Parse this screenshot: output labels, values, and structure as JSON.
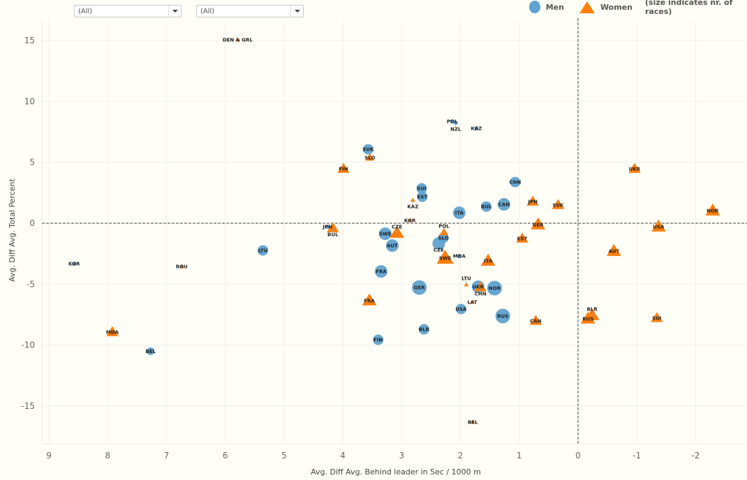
{
  "filters": [
    {
      "value": "(All)"
    },
    {
      "value": "(All)"
    }
  ],
  "legend": {
    "men": "Men",
    "women": "Women",
    "note": "(size indicates nr. of races)"
  },
  "colors": {
    "men": "#5fa2cf",
    "women": "#ff7f0e"
  },
  "chart_data": {
    "type": "scatter",
    "xlabel": "Avg. Diff Avg. Behind leader in Sec / 1000 m",
    "ylabel": "Avg. Diff Avg. Total Percent",
    "xlim": [
      9.1,
      -2.85
    ],
    "ylim": [
      -18,
      16.5
    ],
    "x_reversed": true,
    "xticks": [
      "9",
      "8",
      "7",
      "6",
      "5",
      "4",
      "3",
      "2",
      "1",
      "0",
      "-1",
      "-2"
    ],
    "yticks": [
      "15",
      "10",
      "5",
      "0",
      "-5",
      "-10",
      "-15"
    ],
    "reference_lines": {
      "x": 0,
      "y": 0
    },
    "series": [
      {
        "name": "Men",
        "marker": "circle",
        "points": [
          {
            "label": "KOR",
            "x": 8.57,
            "y": -3.32,
            "size": 1
          },
          {
            "label": "LTU",
            "x": 5.36,
            "y": -2.23,
            "size": 3
          },
          {
            "label": "BEL",
            "x": 7.27,
            "y": -10.5,
            "size": 2
          },
          {
            "label": "JPN",
            "x": 4.26,
            "y": -0.29,
            "size": 1
          },
          {
            "label": "SVK",
            "x": 3.57,
            "y": 6.07,
            "size": 3
          },
          {
            "label": "SUI",
            "x": 2.66,
            "y": 2.86,
            "size": 3
          },
          {
            "label": "EST",
            "x": 2.65,
            "y": 2.18,
            "size": 3
          },
          {
            "label": "POL",
            "x": 2.14,
            "y": 8.36,
            "size": 1
          },
          {
            "label": "NZL",
            "x": 2.08,
            "y": 8.24,
            "size": 1
          },
          {
            "label": "KAZ",
            "x": 1.73,
            "y": 7.78,
            "size": 1
          },
          {
            "label": "CHN",
            "x": 1.07,
            "y": 3.38,
            "size": 3
          },
          {
            "label": "CAN",
            "x": 1.26,
            "y": 1.55,
            "size": 4
          },
          {
            "label": "BUL",
            "x": 1.56,
            "y": 1.37,
            "size": 3
          },
          {
            "label": "ITA",
            "x": 2.02,
            "y": 0.86,
            "size": 4
          },
          {
            "label": "SWE",
            "x": 3.28,
            "y": -0.86,
            "size": 4
          },
          {
            "label": "AUT",
            "x": 3.16,
            "y": -1.83,
            "size": 4
          },
          {
            "label": "SLO",
            "x": 2.29,
            "y": -1.2,
            "size": 3
          },
          {
            "label": "CZE",
            "x": 2.37,
            "y": -1.66,
            "size": 4
          },
          {
            "label": "MDA",
            "x": 2.02,
            "y": -2.69,
            "size": 1
          },
          {
            "label": "FRA",
            "x": 3.35,
            "y": -3.95,
            "size": 4
          },
          {
            "label": "GER",
            "x": 2.7,
            "y": -5.27,
            "size": 5
          },
          {
            "label": "UKR",
            "x": 1.7,
            "y": -5.21,
            "size": 4
          },
          {
            "label": "NOR",
            "x": 1.42,
            "y": -5.32,
            "size": 5
          },
          {
            "label": "USA",
            "x": 1.99,
            "y": -7.04,
            "size": 3
          },
          {
            "label": "RUS",
            "x": 1.28,
            "y": -7.61,
            "size": 5
          },
          {
            "label": "BLR",
            "x": 2.62,
            "y": -8.7,
            "size": 3
          },
          {
            "label": "FIN",
            "x": 3.4,
            "y": -9.56,
            "size": 3
          }
        ]
      },
      {
        "name": "Women",
        "marker": "triangle",
        "points": [
          {
            "label": "DEN & GRL",
            "x": 5.79,
            "y": 15.05,
            "size": 1
          },
          {
            "label": "FIN",
            "x": 3.99,
            "y": 4.46,
            "size": 3
          },
          {
            "label": "SLO",
            "x": 3.54,
            "y": 5.38,
            "size": 2
          },
          {
            "label": "KAZ",
            "x": 2.81,
            "y": 1.89,
            "size": 1
          },
          {
            "label": "KOR",
            "x": 2.86,
            "y": 0.23,
            "size": 1
          },
          {
            "label": "BUL",
            "x": 4.17,
            "y": -0.4,
            "size": 3
          },
          {
            "label": "CZE",
            "x": 3.08,
            "y": -0.8,
            "size": 4
          },
          {
            "label": "POL",
            "x": 2.28,
            "y": -0.74,
            "size": 2
          },
          {
            "label": "SWE",
            "x": 2.26,
            "y": -2.86,
            "size": 5
          },
          {
            "label": "ITA",
            "x": 1.53,
            "y": -3.09,
            "size": 4
          },
          {
            "label": "JPN",
            "x": 0.77,
            "y": 1.77,
            "size": 3
          },
          {
            "label": "SVK",
            "x": 0.34,
            "y": 1.49,
            "size": 3
          },
          {
            "label": "GER",
            "x": 0.68,
            "y": -0.11,
            "size": 4
          },
          {
            "label": "EST",
            "x": 0.95,
            "y": -1.26,
            "size": 3
          },
          {
            "label": "ROU",
            "x": 6.74,
            "y": -3.55,
            "size": 1
          },
          {
            "label": "MDA",
            "x": 7.92,
            "y": -8.93,
            "size": 3
          },
          {
            "label": "FRA",
            "x": 3.55,
            "y": -6.35,
            "size": 4
          },
          {
            "label": "LTU",
            "x": 1.9,
            "y": -5.04,
            "size": 1
          },
          {
            "label": "CHN",
            "x": 1.66,
            "y": -5.27,
            "size": 3
          },
          {
            "label": "LAT",
            "x": 1.8,
            "y": -6.47,
            "size": 1
          },
          {
            "label": "BEL",
            "x": 1.79,
            "y": -16.31,
            "size": 1
          },
          {
            "label": "CAN",
            "x": 0.72,
            "y": -8.01,
            "size": 3
          },
          {
            "label": "UKR",
            "x": -0.96,
            "y": 4.46,
            "size": 3
          },
          {
            "label": "NOR",
            "x": -2.29,
            "y": 1.03,
            "size": 4
          },
          {
            "label": "USA",
            "x": -1.37,
            "y": -0.29,
            "size": 4
          },
          {
            "label": "AUT",
            "x": -0.61,
            "y": -2.29,
            "size": 4
          },
          {
            "label": "RUS",
            "x": -0.17,
            "y": -7.84,
            "size": 4
          },
          {
            "label": "BLR",
            "x": -0.24,
            "y": -7.56,
            "size": 4
          },
          {
            "label": "SUI",
            "x": -1.34,
            "y": -7.78,
            "size": 3
          }
        ]
      }
    ]
  }
}
